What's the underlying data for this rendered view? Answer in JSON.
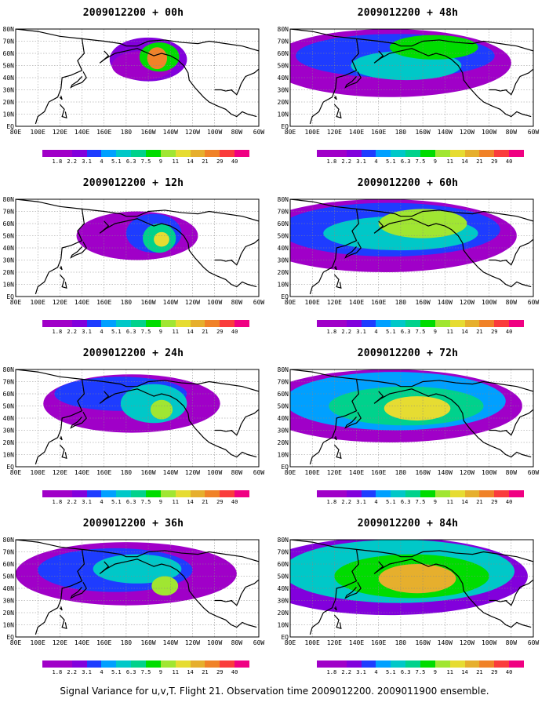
{
  "panels": [
    {
      "title": "2009012200 + 00h",
      "col": 0,
      "row": 0,
      "level": 0
    },
    {
      "title": "2009012200 + 12h",
      "col": 0,
      "row": 1,
      "level": 1
    },
    {
      "title": "2009012200 + 24h",
      "col": 0,
      "row": 2,
      "level": 2
    },
    {
      "title": "2009012200 + 36h",
      "col": 0,
      "row": 3,
      "level": 3
    },
    {
      "title": "2009012200 + 48h",
      "col": 1,
      "row": 0,
      "level": 4
    },
    {
      "title": "2009012200 + 60h",
      "col": 1,
      "row": 1,
      "level": 5
    },
    {
      "title": "2009012200 + 72h",
      "col": 1,
      "row": 2,
      "level": 6
    },
    {
      "title": "2009012200 + 84h",
      "col": 1,
      "row": 3,
      "level": 7
    }
  ],
  "lat_labels": [
    "80N",
    "70N",
    "60N",
    "50N",
    "40N",
    "30N",
    "20N",
    "10N",
    "EQ"
  ],
  "lon_labels": [
    "80E",
    "100E",
    "120E",
    "140E",
    "160E",
    "180",
    "160W",
    "140W",
    "120W",
    "100W",
    "80W",
    "60W"
  ],
  "colorbar": {
    "labels": [
      "1.8",
      "2.2",
      "3.1",
      "4",
      "5.1",
      "6.3",
      "7.5",
      "9",
      "11",
      "14",
      "21",
      "29",
      "40"
    ],
    "colors": [
      "#a000c8",
      "#8200dc",
      "#1e3cff",
      "#00a0ff",
      "#00c8c8",
      "#00d28c",
      "#00dc00",
      "#a0e632",
      "#e6dc32",
      "#e6af2d",
      "#f08228",
      "#fa3c3c",
      "#f00082"
    ]
  },
  "footer": "Signal Variance for u,v,T. Flight 21. Observation time 2009012200. 2009011900 ensemble."
}
